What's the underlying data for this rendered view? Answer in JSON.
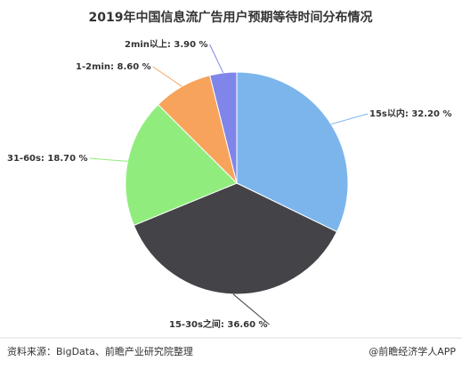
{
  "chart_data": {
    "type": "pie",
    "title": "2019年中国信息流广告用户预期等待时间分布情况",
    "values": [
      32.2,
      36.6,
      18.7,
      8.6,
      3.9
    ],
    "value_labels": [
      "15s以内: 32.20 %",
      "15-30s之间: 36.60 %",
      "31-60s: 18.70 %",
      "1-2min: 8.60 %",
      "2min以上: 3.90 %"
    ],
    "colors": [
      "#7cb5ec",
      "#434348",
      "#90ed7d",
      "#f7a35c",
      "#8085e9"
    ]
  },
  "footer": {
    "source": "资料来源：BigData、前瞻产业研究院整理",
    "credit": "@前瞻经济学人APP"
  }
}
